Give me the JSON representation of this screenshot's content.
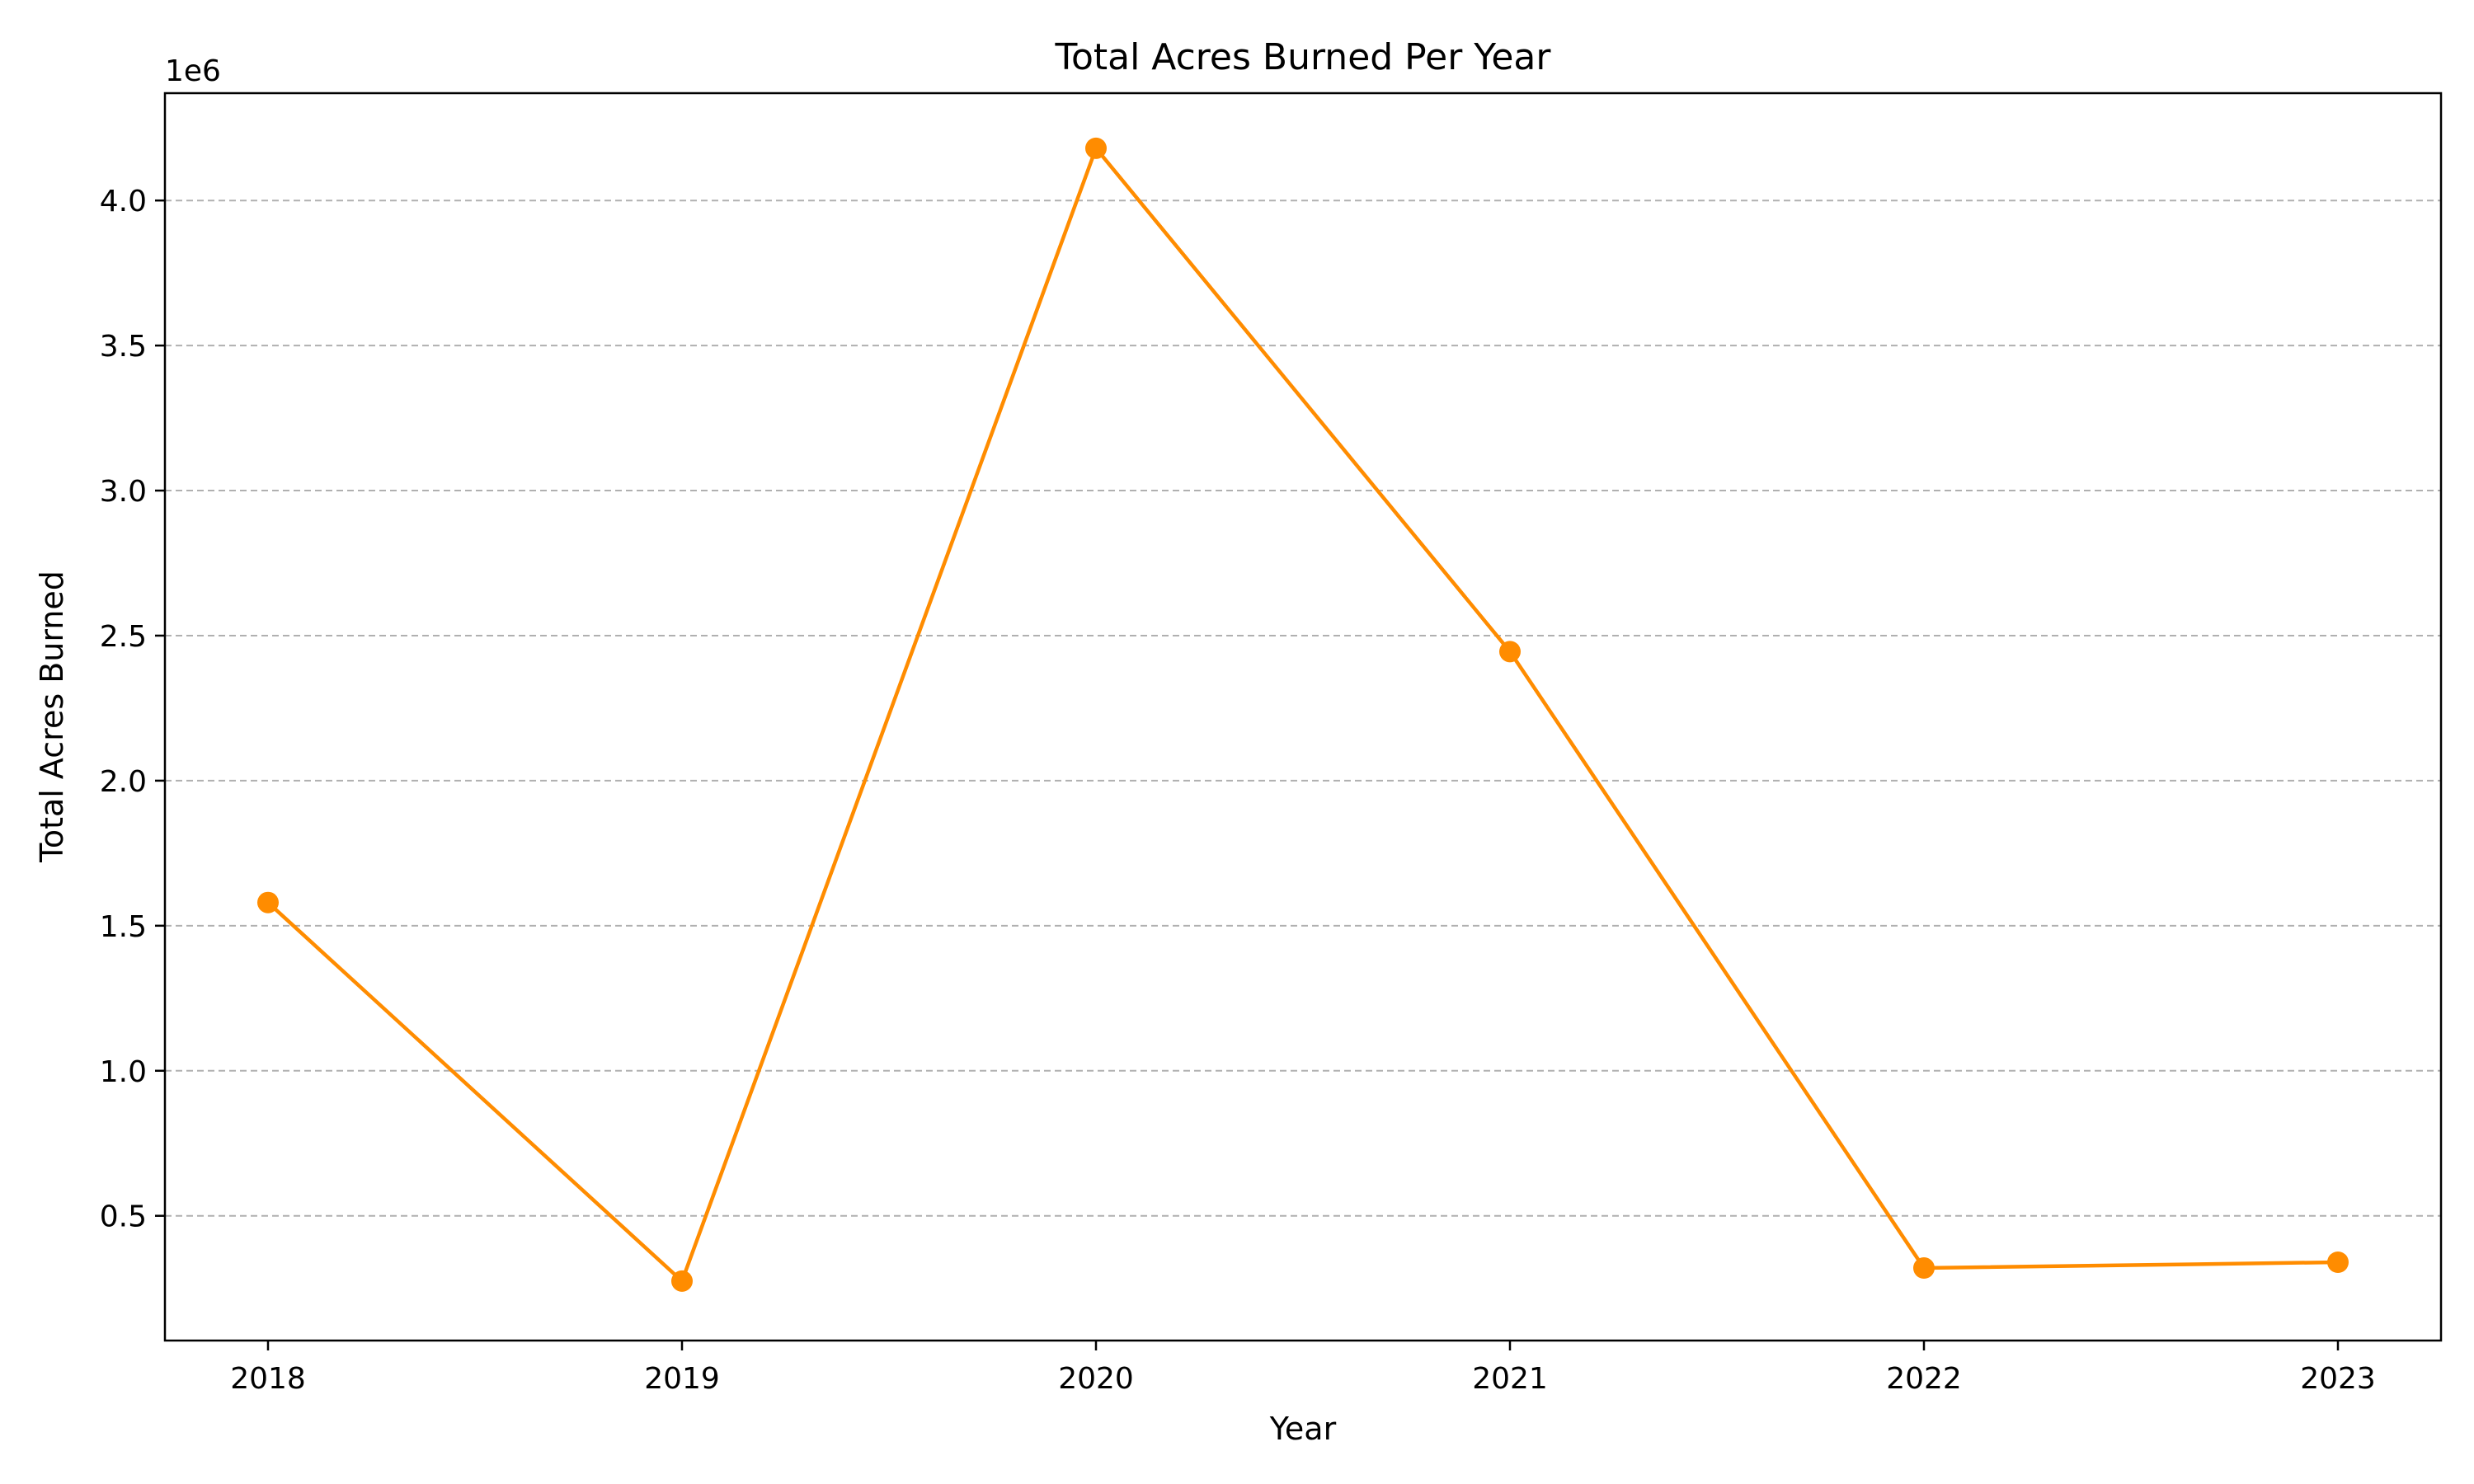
{
  "chart_data": {
    "type": "line",
    "title": "Total Acres Burned Per Year",
    "xlabel": "Year",
    "ylabel": "Total Acres Burned",
    "y_offset_label": "1e6",
    "x": [
      "2018",
      "2019",
      "2020",
      "2021",
      "2022",
      "2023"
    ],
    "series": [
      {
        "values": [
          1580000,
          275000,
          4180000,
          2445000,
          320000,
          340000
        ],
        "color": "#ff8c00",
        "marker": "circle"
      }
    ],
    "ylim": [
      70000,
      4370000
    ],
    "yticks": [
      0.5,
      1.0,
      1.5,
      2.0,
      2.5,
      3.0,
      3.5,
      4.0
    ],
    "ytick_scale": 1000000,
    "grid": {
      "axis": "y",
      "style": "dashed",
      "color": "#b0b0b0"
    },
    "legend": "none"
  }
}
